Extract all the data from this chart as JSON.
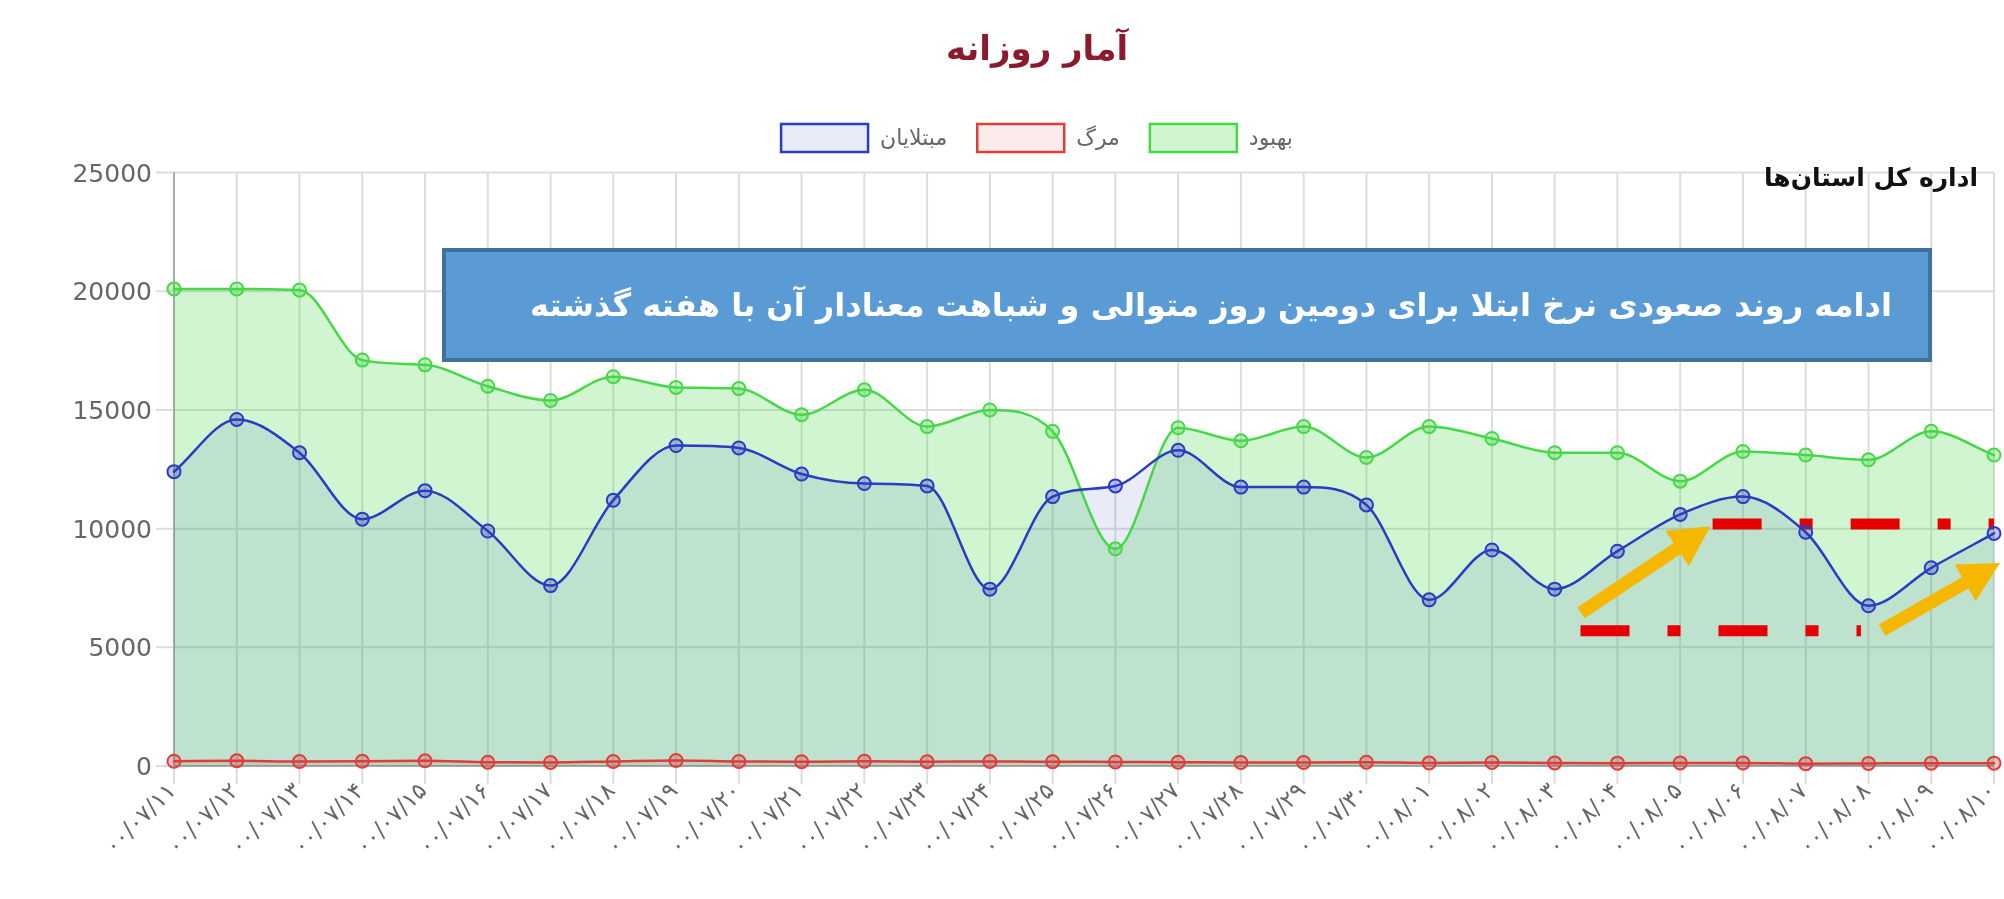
{
  "chart_data": {
    "type": "area",
    "title": "آمار روزانه",
    "categories": [
      "۰۰/۰۷/۱۱",
      "۰۰/۰۷/۱۲",
      "۰۰/۰۷/۱۳",
      "۰۰/۰۷/۱۴",
      "۰۰/۰۷/۱۵",
      "۰۰/۰۷/۱۶",
      "۰۰/۰۷/۱۷",
      "۰۰/۰۷/۱۸",
      "۰۰/۰۷/۱۹",
      "۰۰/۰۷/۲۰",
      "۰۰/۰۷/۲۱",
      "۰۰/۰۷/۲۲",
      "۰۰/۰۷/۲۳",
      "۰۰/۰۷/۲۴",
      "۰۰/۰۷/۲۵",
      "۰۰/۰۷/۲۶",
      "۰۰/۰۷/۲۷",
      "۰۰/۰۷/۲۸",
      "۰۰/۰۷/۲۹",
      "۰۰/۰۷/۳۰",
      "۰۰/۰۸/۰۱",
      "۰۰/۰۸/۰۲",
      "۰۰/۰۸/۰۳",
      "۰۰/۰۸/۰۴",
      "۰۰/۰۸/۰۵",
      "۰۰/۰۸/۰۶",
      "۰۰/۰۸/۰۷",
      "۰۰/۰۸/۰۸",
      "۰۰/۰۸/۰۹",
      "۰۰/۰۸/۱۰"
    ],
    "series": [
      {
        "name": "مبتلایان",
        "color": "#2a3bc4",
        "values": [
          12400,
          14600,
          13200,
          10400,
          11600,
          9900,
          7600,
          11200,
          13500,
          13400,
          12300,
          11900,
          11800,
          7450,
          11350,
          11800,
          13300,
          11750,
          11750,
          11000,
          7000,
          9100,
          7450,
          9050,
          10600,
          11350,
          9850,
          6750,
          8350,
          9800
        ]
      },
      {
        "name": "مرگ",
        "color": "#e03c3c",
        "values": [
          200,
          220,
          190,
          200,
          220,
          160,
          150,
          190,
          230,
          190,
          180,
          200,
          180,
          190,
          180,
          170,
          160,
          150,
          150,
          160,
          130,
          150,
          130,
          120,
          130,
          130,
          100,
          110,
          120,
          120
        ]
      },
      {
        "name": "بهبود",
        "color": "#46d846",
        "values": [
          20100,
          20100,
          20050,
          17100,
          16900,
          16000,
          15400,
          16400,
          15950,
          15900,
          14800,
          15850,
          14300,
          15000,
          14100,
          9150,
          14250,
          13700,
          14300,
          13000,
          14300,
          13800,
          13200,
          13200,
          12000,
          13250,
          13100,
          12900,
          14100,
          13100
        ]
      }
    ],
    "ylim": [
      0,
      25000
    ],
    "yticks": [
      0,
      5000,
      10000,
      15000,
      20000,
      25000
    ],
    "grid": true,
    "legend": "top",
    "marker": "circle",
    "annotations": [
      "ادامه روند صعودی نرخ ابتلا برای دومین روز متوالی و شباهت معنادار آن با هفته گذشته",
      "اداره کل استان‌ها"
    ]
  }
}
